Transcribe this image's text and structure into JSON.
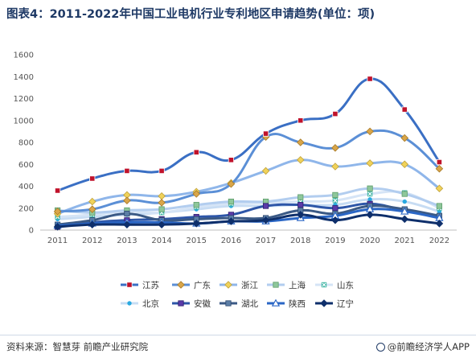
{
  "header": {
    "title": "图表4：2011-2022年中国工业电机行业专利地区申请趋势(单位：项)"
  },
  "footer": {
    "source": "资料来源：智慧芽 前瞻产业研究院",
    "credit": "@前瞻经济学人APP"
  },
  "chart_data": {
    "type": "line",
    "title": "图表4：2011-2022年中国工业电机行业专利地区申请趋势(单位：项)",
    "xlabel": "",
    "ylabel": "",
    "categories": [
      "2011",
      "2012",
      "2013",
      "2014",
      "2015",
      "2016",
      "2017",
      "2018",
      "2019",
      "2020",
      "2021",
      "2022"
    ],
    "ylim": [
      0,
      1600
    ],
    "yticks": [
      0,
      200,
      400,
      600,
      800,
      1000,
      1200,
      1400,
      1600
    ],
    "grid": false,
    "legend": "bottom",
    "series": [
      {
        "name": "江苏",
        "color": "#3a6fc4",
        "marker": "square-red",
        "values": [
          360,
          470,
          540,
          540,
          710,
          640,
          880,
          1000,
          1060,
          1380,
          1100,
          620
        ]
      },
      {
        "name": "广东",
        "color": "#5b8fd6",
        "marker": "diamond-gold",
        "values": [
          170,
          190,
          270,
          250,
          330,
          420,
          850,
          800,
          750,
          900,
          840,
          560
        ]
      },
      {
        "name": "浙江",
        "color": "#8fb6ea",
        "marker": "diamond-yellow",
        "values": [
          150,
          260,
          320,
          310,
          350,
          430,
          540,
          640,
          580,
          610,
          600,
          380
        ]
      },
      {
        "name": "上海",
        "color": "#b2cdef",
        "marker": "square-green",
        "values": [
          180,
          160,
          180,
          190,
          230,
          260,
          260,
          300,
          320,
          380,
          330,
          220
        ]
      },
      {
        "name": "山东",
        "color": "#d5e4f6",
        "marker": "x-teal",
        "values": [
          120,
          140,
          170,
          160,
          210,
          240,
          250,
          260,
          270,
          330,
          340,
          200
        ]
      },
      {
        "name": "北京",
        "color": "#c7dcf3",
        "marker": "dot-cyan",
        "values": [
          100,
          120,
          140,
          160,
          190,
          220,
          220,
          230,
          230,
          280,
          260,
          170
        ]
      },
      {
        "name": "安徽",
        "color": "#2d56a8",
        "marker": "square-purple",
        "values": [
          30,
          70,
          90,
          100,
          120,
          140,
          220,
          230,
          200,
          240,
          180,
          120
        ]
      },
      {
        "name": "湖北",
        "color": "#3b5a86",
        "marker": "square-steel",
        "values": [
          50,
          90,
          150,
          90,
          100,
          110,
          110,
          180,
          150,
          220,
          190,
          130
        ]
      },
      {
        "name": "陕西",
        "color": "#2a66c5",
        "marker": "triangle-white",
        "values": [
          40,
          60,
          70,
          70,
          60,
          80,
          80,
          110,
          130,
          190,
          170,
          110
        ]
      },
      {
        "name": "辽宁",
        "color": "#0e2f6b",
        "marker": "diamond-navy",
        "values": [
          30,
          50,
          50,
          50,
          60,
          80,
          90,
          140,
          90,
          140,
          100,
          60
        ]
      }
    ]
  }
}
